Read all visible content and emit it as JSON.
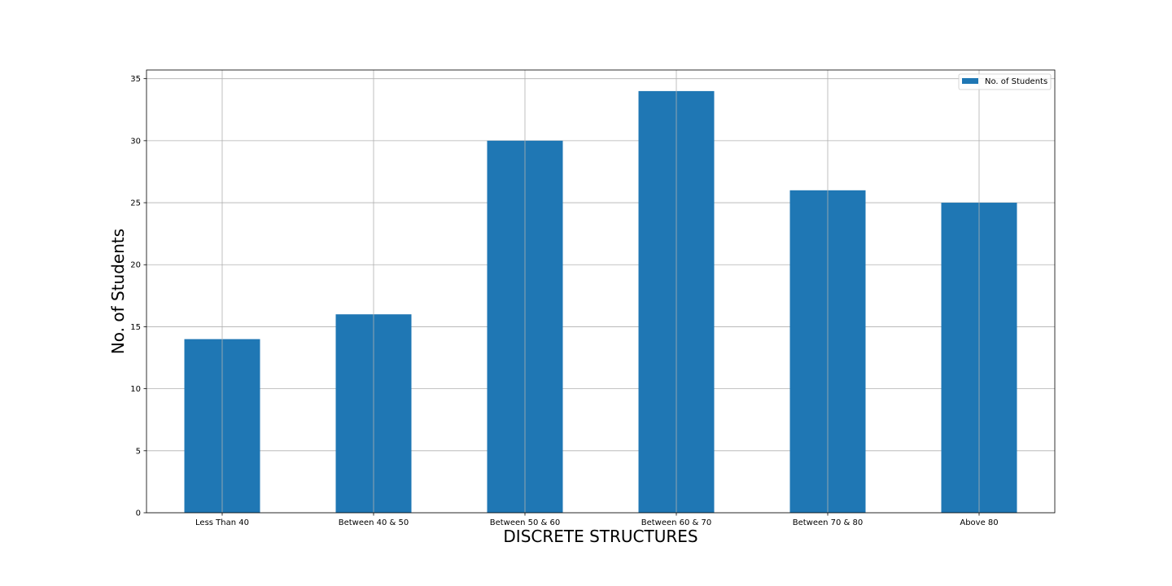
{
  "chart_data": {
    "type": "bar",
    "title": "",
    "xlabel": "DISCRETE STRUCTURES",
    "ylabel": "No. of Students",
    "categories": [
      "Less Than 40",
      "Between 40 & 50",
      "Between 50 & 60",
      "Between 60 & 70",
      "Between 70 & 80",
      "Above 80"
    ],
    "series": [
      {
        "name": "No. of Students",
        "values": [
          14,
          16,
          30,
          34,
          26,
          25
        ],
        "color": "#1f77b4"
      }
    ],
    "ylim": [
      0,
      35.7
    ],
    "yticks": [
      0,
      5,
      10,
      15,
      20,
      25,
      30,
      35
    ],
    "grid": true,
    "legend_position": "top-right"
  }
}
